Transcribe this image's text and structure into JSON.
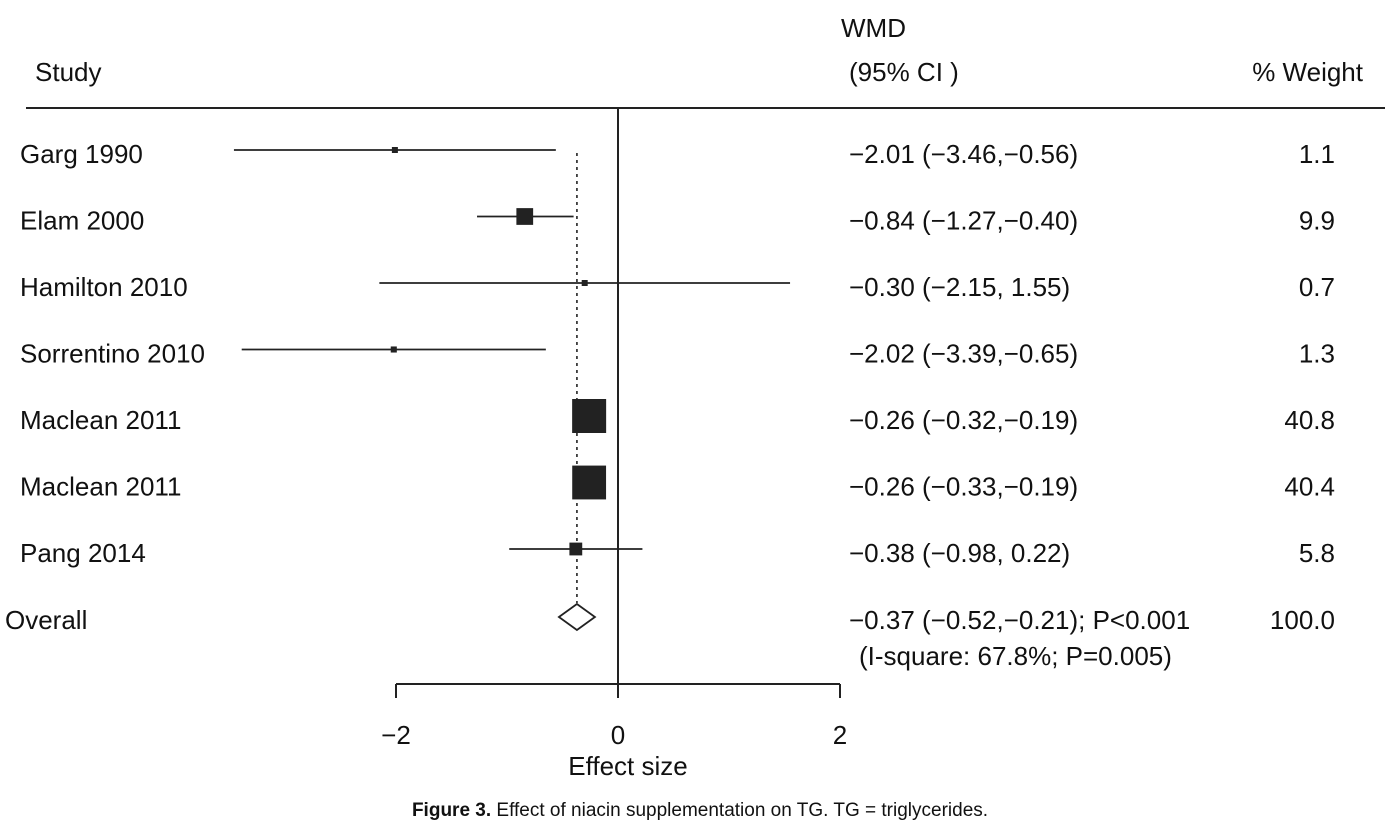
{
  "chart_data": {
    "type": "forest",
    "headers": {
      "study": "Study",
      "wmd_line1": "WMD",
      "wmd_line2": "(95% CI )",
      "weight": "% Weight"
    },
    "studies": [
      {
        "name": "Garg 1990",
        "estimate": -2.01,
        "ci_low": -3.46,
        "ci_high": -0.56,
        "text": "−2.01 (−3.46,−0.56)",
        "weight": 1.1,
        "weight_text": "1.1"
      },
      {
        "name": "Elam 2000",
        "estimate": -0.84,
        "ci_low": -1.27,
        "ci_high": -0.4,
        "text": "−0.84 (−1.27,−0.40)",
        "weight": 9.9,
        "weight_text": "9.9"
      },
      {
        "name": "Hamilton 2010",
        "estimate": -0.3,
        "ci_low": -2.15,
        "ci_high": 1.55,
        "text": "−0.30 (−2.15, 1.55)",
        "weight": 0.7,
        "weight_text": "0.7"
      },
      {
        "name": "Sorrentino 2010",
        "estimate": -2.02,
        "ci_low": -3.39,
        "ci_high": -0.65,
        "text": "−2.02 (−3.39,−0.65)",
        "weight": 1.3,
        "weight_text": "1.3"
      },
      {
        "name": "Maclean 2011",
        "estimate": -0.26,
        "ci_low": -0.32,
        "ci_high": -0.19,
        "text": "−0.26 (−0.32,−0.19)",
        "weight": 40.8,
        "weight_text": "40.8"
      },
      {
        "name": "Maclean 2011",
        "estimate": -0.26,
        "ci_low": -0.33,
        "ci_high": -0.19,
        "text": "−0.26 (−0.33,−0.19)",
        "weight": 40.4,
        "weight_text": "40.4"
      },
      {
        "name": "Pang 2014",
        "estimate": -0.38,
        "ci_low": -0.98,
        "ci_high": 0.22,
        "text": "−0.38 (−0.98, 0.22)",
        "weight": 5.8,
        "weight_text": "5.8"
      }
    ],
    "overall": {
      "name": "Overall",
      "estimate": -0.37,
      "ci_low": -0.52,
      "ci_high": -0.21,
      "text": "−0.37 (−0.52,−0.21); P<0.001",
      "heterogeneity_text": "(I-square: 67.8%; P=0.005)",
      "weight_text": "100.0"
    },
    "x_axis": {
      "label": "Effect size",
      "range": [
        -2,
        2
      ],
      "ticks": [
        -2,
        0,
        2
      ],
      "tick_labels": [
        "−2",
        "0",
        "2"
      ]
    }
  },
  "caption": {
    "label": "Figure 3.",
    "text": " Effect of niacin supplementation on TG. TG = triglycerides."
  }
}
